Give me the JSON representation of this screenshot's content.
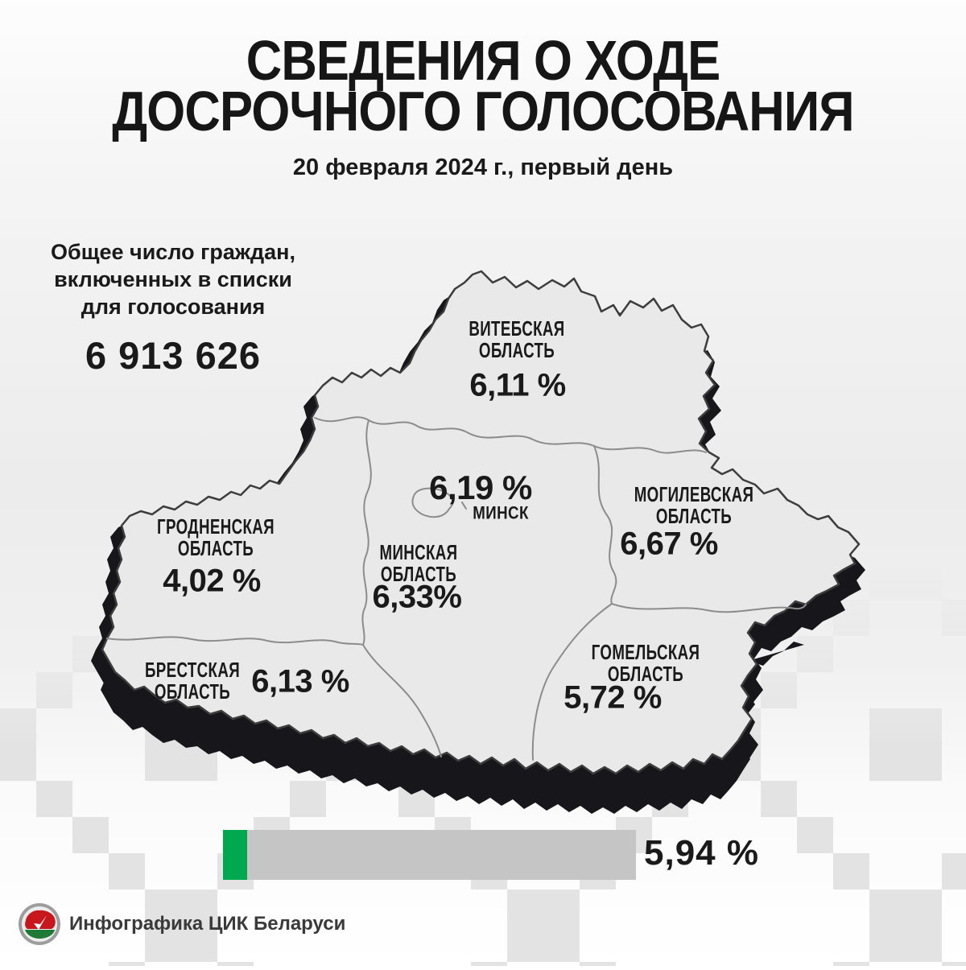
{
  "title": {
    "line1": "СВЕДЕНИЯ О ХОДЕ",
    "line2": "ДОСРОЧНОГО ГОЛОСОВАНИЯ"
  },
  "subtitle": "20 февраля 2024 г., первый день",
  "voters_total": {
    "label_lines": [
      "Общее число граждан,",
      "включенных в списки",
      "для голосования"
    ],
    "value": "6 913 626"
  },
  "map": {
    "country": "Беларусь",
    "land_color": "#e9e9e9",
    "shadow_color": "#17171b",
    "border_color": "#3d3d3d",
    "inner_border_color": "#8c8c8c",
    "regions": [
      {
        "id": "vitebsk",
        "name_lines": [
          "ВИТЕБСКАЯ",
          "ОБЛАСТЬ"
        ],
        "value": "6,11 %"
      },
      {
        "id": "minsk-city",
        "name_lines": [
          "МИНСК"
        ],
        "value": "6,19 %"
      },
      {
        "id": "mogilev",
        "name_lines": [
          "МОГИЛЕВСКАЯ",
          "ОБЛАСТЬ"
        ],
        "value": "6,67 %"
      },
      {
        "id": "grodno",
        "name_lines": [
          "ГРОДНЕНСКАЯ",
          "ОБЛАСТЬ"
        ],
        "value": "4,02 %"
      },
      {
        "id": "minsk-region",
        "name_lines": [
          "МИНСКАЯ",
          "ОБЛАСТЬ"
        ],
        "value": "6,33%"
      },
      {
        "id": "brest",
        "name_lines": [
          "БРЕСТСКАЯ",
          "ОБЛАСТЬ"
        ],
        "value": "6,13 %"
      },
      {
        "id": "gomel",
        "name_lines": [
          "ГОМЕЛЬСКАЯ",
          "ОБЛАСТЬ"
        ],
        "value": "5,72 %"
      }
    ]
  },
  "progress": {
    "value": "5,94 %",
    "percent": 5.94,
    "bar_color": "#c5c5c5",
    "fill_color": "#00a94f"
  },
  "footer": {
    "credit": "Инфографика ЦИК Беларуси",
    "logo": {
      "red_hex": "#c8161d",
      "green_hex": "#1e7a34",
      "ring_hex": "#9d9d9d"
    }
  },
  "chart_data": {
    "type": "table",
    "title": "Сведения о ходе досрочного голосования",
    "date": "20 февраля 2024 г., первый день",
    "total_voters_listed": 6913626,
    "national_turnout_percent": 5.94,
    "regions": [
      {
        "name": "Витебская область",
        "turnout_percent": 6.11
      },
      {
        "name": "Минск",
        "turnout_percent": 6.19
      },
      {
        "name": "Могилевская область",
        "turnout_percent": 6.67
      },
      {
        "name": "Гродненская область",
        "turnout_percent": 4.02
      },
      {
        "name": "Минская область",
        "turnout_percent": 6.33
      },
      {
        "name": "Брестская область",
        "turnout_percent": 6.13
      },
      {
        "name": "Гомельская область",
        "turnout_percent": 5.72
      }
    ]
  }
}
